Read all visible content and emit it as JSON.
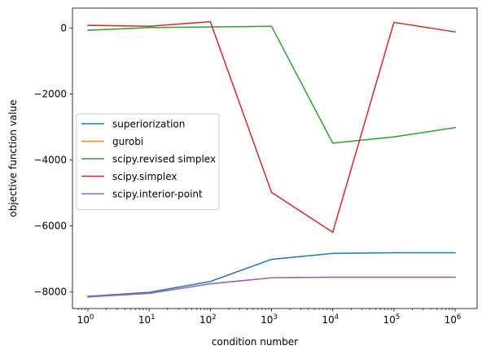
{
  "chart_data": {
    "type": "line",
    "title": "",
    "xlabel": "condition number",
    "ylabel": "objective function value",
    "x_scale": "log",
    "x": [
      1,
      10,
      100,
      1000,
      10000,
      100000,
      1000000
    ],
    "x_tick_labels": [
      {
        "base": "10",
        "exp": "0"
      },
      {
        "base": "10",
        "exp": "1"
      },
      {
        "base": "10",
        "exp": "2"
      },
      {
        "base": "10",
        "exp": "3"
      },
      {
        "base": "10",
        "exp": "4"
      },
      {
        "base": "10",
        "exp": "5"
      },
      {
        "base": "10",
        "exp": "6"
      }
    ],
    "ylim": [
      -8500,
      600
    ],
    "y_ticks": [
      0,
      -2000,
      -4000,
      -6000,
      -8000
    ],
    "y_tick_labels": [
      "0",
      "−2000",
      "−4000",
      "−6000",
      "−8000"
    ],
    "grid": false,
    "legend_position": "center-left",
    "series": [
      {
        "name": "superiorization",
        "color": "#1f77b4",
        "values": [
          -8130,
          -8010,
          -7680,
          -7010,
          -6830,
          -6810,
          -6810
        ]
      },
      {
        "name": "gurobi",
        "color": "#ff7f0e",
        "values": [
          -8150,
          -8040,
          -7750,
          -7570,
          -7550,
          -7550,
          -7550
        ]
      },
      {
        "name": "scipy.revised simplex",
        "color": "#2ca02c",
        "values": [
          -70,
          10,
          30,
          50,
          -3490,
          -3300,
          -3020
        ]
      },
      {
        "name": "scipy.simplex",
        "color": "#d62728",
        "values": [
          80,
          50,
          190,
          -4980,
          -6190,
          170,
          -120
        ]
      },
      {
        "name": "scipy.interior-point",
        "color": "#9467bd",
        "values": [
          -8150,
          -8040,
          -7750,
          -7570,
          -7550,
          -7550,
          -7550
        ]
      }
    ]
  }
}
